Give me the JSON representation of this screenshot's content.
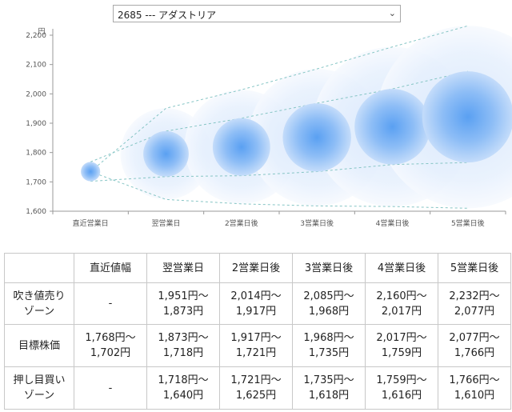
{
  "stock_select": {
    "selected": "2685 --- アダストリア"
  },
  "chart_data": {
    "type": "bubble",
    "y_unit": "円",
    "categories": [
      "直近営業日",
      "翌営業日",
      "2営業日後",
      "3営業日後",
      "4営業日後",
      "5営業日後"
    ],
    "yticks": [
      1600,
      1700,
      1800,
      1900,
      2000,
      2100,
      2200
    ],
    "ytick_labels": [
      "1,600",
      "1,700",
      "1,800",
      "1,900",
      "2,000",
      "2,100",
      "2,200"
    ],
    "ylim": [
      1600,
      2200
    ],
    "target": [
      1735,
      1795,
      1819,
      1852,
      1888,
      1922
    ],
    "target_high": [
      1768,
      1873,
      1917,
      1968,
      2017,
      2077
    ],
    "target_low": [
      1702,
      1718,
      1721,
      1735,
      1759,
      1766
    ],
    "sell_high": [
      null,
      1951,
      2014,
      2085,
      2160,
      2232
    ],
    "buy_low": [
      null,
      1640,
      1625,
      1618,
      1616,
      1610
    ],
    "colors": {
      "bubble_core": "#3b8ef0",
      "bubble_halo": "#cfe2fb",
      "dash": "#86c5c5"
    }
  },
  "table": {
    "headers": [
      "",
      "直近値幅",
      "翌営業日",
      "2営業日後",
      "3営業日後",
      "4営業日後",
      "5営業日後"
    ],
    "rows": [
      {
        "label": [
          "吹き値売り",
          "ゾーン"
        ],
        "cells": [
          [
            "-"
          ],
          [
            "1,951円〜",
            "1,873円"
          ],
          [
            "2,014円〜",
            "1,917円"
          ],
          [
            "2,085円〜",
            "1,968円"
          ],
          [
            "2,160円〜",
            "2,017円"
          ],
          [
            "2,232円〜",
            "2,077円"
          ]
        ]
      },
      {
        "label": [
          "目標株価"
        ],
        "cells": [
          [
            "1,768円〜",
            "1,702円"
          ],
          [
            "1,873円〜",
            "1,718円"
          ],
          [
            "1,917円〜",
            "1,721円"
          ],
          [
            "1,968円〜",
            "1,735円"
          ],
          [
            "2,017円〜",
            "1,759円"
          ],
          [
            "2,077円〜",
            "1,766円"
          ]
        ]
      },
      {
        "label": [
          "押し目買い",
          "ゾーン"
        ],
        "cells": [
          [
            "-"
          ],
          [
            "1,718円〜",
            "1,640円"
          ],
          [
            "1,721円〜",
            "1,625円"
          ],
          [
            "1,735円〜",
            "1,618円"
          ],
          [
            "1,759円〜",
            "1,616円"
          ],
          [
            "1,766円〜",
            "1,610円"
          ]
        ]
      }
    ]
  }
}
